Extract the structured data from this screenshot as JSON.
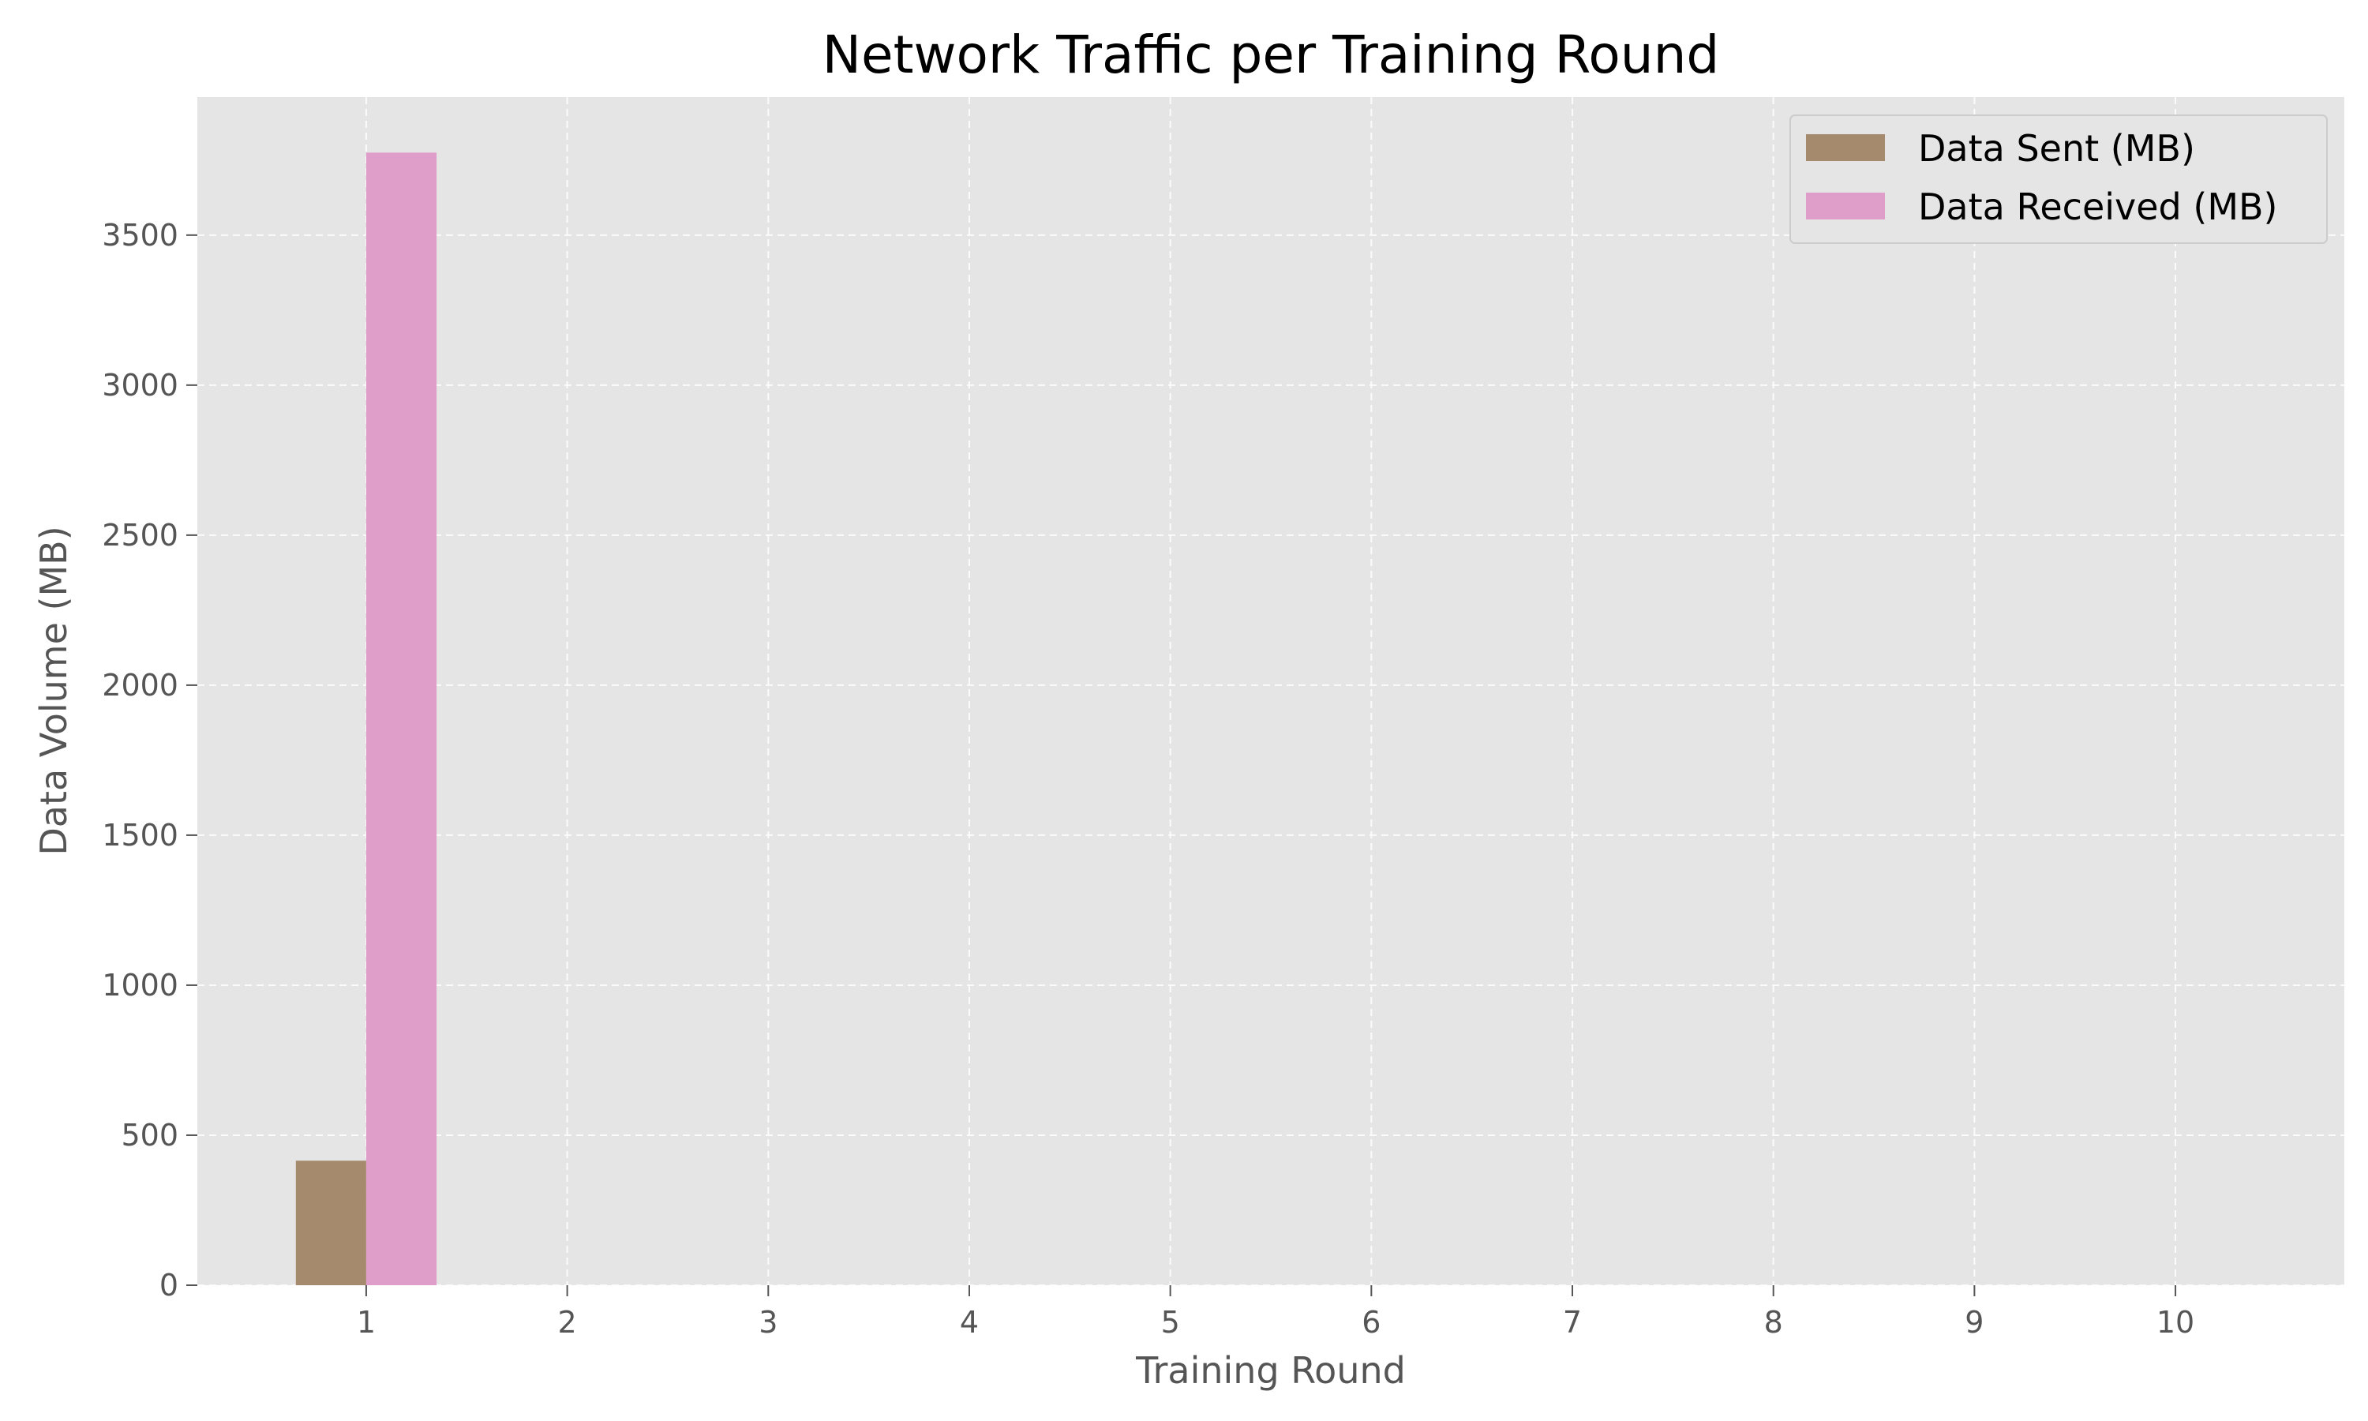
{
  "chart_data": {
    "type": "bar",
    "title": "Network Traffic per Training Round",
    "xlabel": "Training Round",
    "ylabel": "Data Volume (MB)",
    "categories": [
      "1",
      "2",
      "3",
      "4",
      "5",
      "6",
      "7",
      "8",
      "9",
      "10"
    ],
    "series": [
      {
        "name": "Data Sent (MB)",
        "color": "#a58a6d",
        "values": [
          415,
          0,
          0,
          0,
          0,
          0,
          0,
          0,
          0,
          0
        ]
      },
      {
        "name": "Data Received (MB)",
        "color": "#df9ec9",
        "values": [
          3775,
          0,
          0,
          0,
          0,
          0,
          0,
          0,
          0,
          0
        ]
      }
    ],
    "yticks": [
      0,
      500,
      1000,
      1500,
      2000,
      2500,
      3000,
      3500
    ],
    "ylim": [
      0,
      3960
    ],
    "xlim": [
      0.16,
      10.84
    ],
    "grid": true,
    "legend": "top-right",
    "background": "#e5e5e5"
  }
}
